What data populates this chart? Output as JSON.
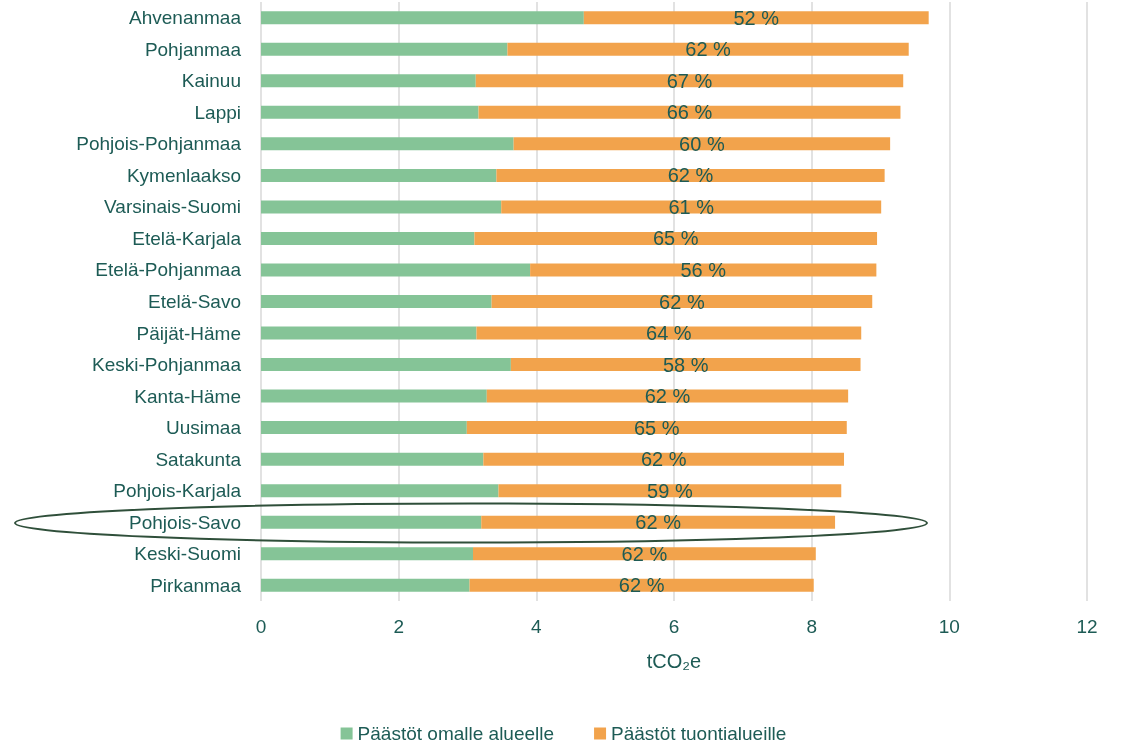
{
  "chart_data": {
    "type": "bar",
    "orientation": "horizontal",
    "stacked": true,
    "xlabel": "tCO₂e",
    "categories": [
      "Ahvenanmaa",
      "Pohjanmaa",
      "Kainuu",
      "Lappi",
      "Pohjois-Pohjanmaa",
      "Kymenlaakso",
      "Varsinais-Suomi",
      "Etelä-Karjala",
      "Etelä-Pohjanmaa",
      "Etelä-Savo",
      "Päijät-Häme",
      "Keski-Pohjanmaa",
      "Kanta-Häme",
      "Uusimaa",
      "Satakunta",
      "Pohjois-Karjala",
      "Pohjois-Savo",
      "Keski-Suomi",
      "Pirkanmaa"
    ],
    "series": [
      {
        "name": "Päästöt omalle alueelle",
        "color": "#85c497",
        "values": [
          4.69,
          3.58,
          3.12,
          3.16,
          3.67,
          3.42,
          3.49,
          3.1,
          3.91,
          3.35,
          3.13,
          3.63,
          3.28,
          2.99,
          3.23,
          3.45,
          3.2,
          3.08,
          3.03
        ]
      },
      {
        "name": "Päästöt tuontialueille",
        "color": "#f2a34c",
        "values": [
          5.01,
          5.83,
          6.21,
          6.13,
          5.47,
          5.64,
          5.52,
          5.85,
          5.03,
          5.53,
          5.59,
          5.08,
          5.25,
          5.52,
          5.24,
          4.98,
          5.14,
          4.98,
          5.0
        ]
      }
    ],
    "annotations": [
      "52 %",
      "62 %",
      "67 %",
      "66 %",
      "60 %",
      "62 %",
      "61 %",
      "65 %",
      "56 %",
      "62 %",
      "64 %",
      "58 %",
      "62 %",
      "65 %",
      "62 %",
      "59 %",
      "62 %",
      "62 %",
      "62 %"
    ],
    "xlim": [
      0,
      12
    ],
    "xticks": [
      0,
      2,
      4,
      6,
      8,
      10,
      12
    ],
    "grid": "x",
    "legend": "bottom"
  }
}
